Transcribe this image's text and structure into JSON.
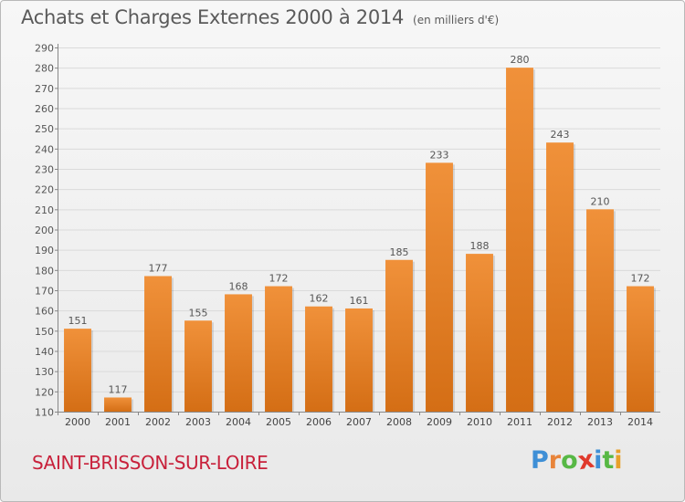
{
  "chart_data": {
    "type": "bar",
    "title": "Achats et Charges Externes 2000 à 2014",
    "subtitle": "(en milliers d'€)",
    "categories": [
      "2000",
      "2001",
      "2002",
      "2003",
      "2004",
      "2005",
      "2006",
      "2007",
      "2008",
      "2009",
      "2010",
      "2011",
      "2012",
      "2013",
      "2014"
    ],
    "values": [
      151,
      117,
      177,
      155,
      168,
      172,
      162,
      161,
      185,
      233,
      188,
      280,
      243,
      210,
      172
    ],
    "ylim": [
      110,
      290
    ],
    "yticks": [
      110,
      120,
      130,
      140,
      150,
      160,
      170,
      180,
      190,
      200,
      210,
      220,
      230,
      240,
      250,
      260,
      270,
      280,
      290
    ],
    "grid": true,
    "bar_color": "#f0913a",
    "bar_color_dark": "#d46e15"
  },
  "location": "SAINT-BRISSON-SUR-LOIRE",
  "logo": {
    "letters": [
      "P",
      "r",
      "o",
      "x",
      "i",
      "t",
      "i"
    ],
    "colors": [
      "#3e8fd6",
      "#e8843a",
      "#57b845",
      "#e03a2c",
      "#3e8fd6",
      "#57b845",
      "#e8a02a"
    ]
  }
}
